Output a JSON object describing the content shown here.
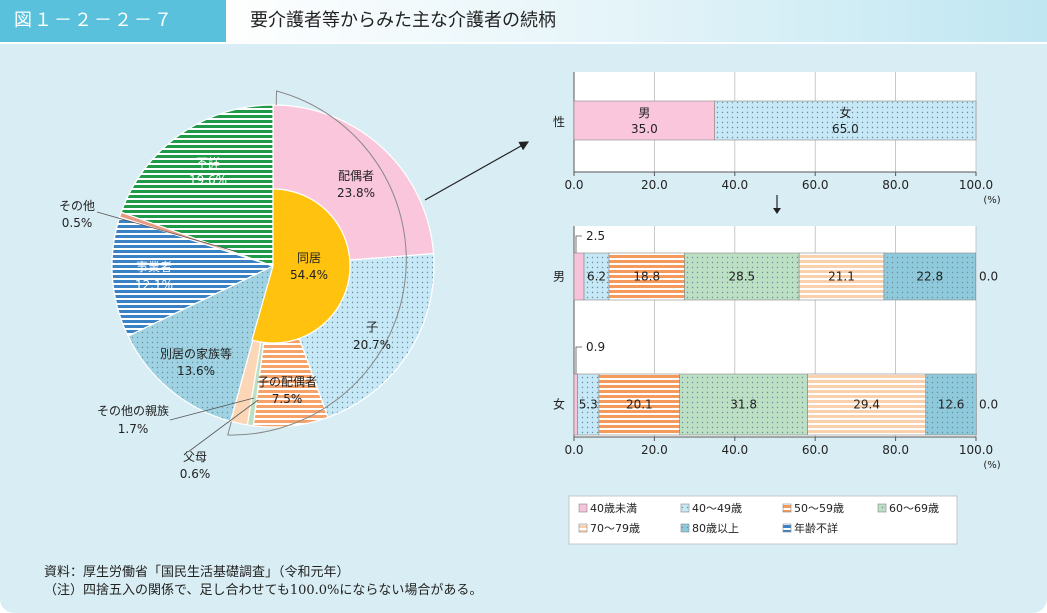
{
  "header": {
    "figure_number": "図１－２－２－７",
    "title": "要介護者等からみた主な介護者の続柄"
  },
  "chart_data": [
    {
      "type": "pie",
      "inner": {
        "label": "同居",
        "value": 54.4,
        "value_text": "54.4%",
        "color": "#ffc20e"
      },
      "slices": [
        {
          "label": "配偶者",
          "value": 23.8,
          "value_text": "23.8%",
          "color": "#f9c6dc",
          "pattern": "solid"
        },
        {
          "label": "子",
          "value": 20.7,
          "value_text": "20.7%",
          "color": "#c7e8f6",
          "pattern": "dots"
        },
        {
          "label": "子の配偶者",
          "value": 7.5,
          "value_text": "7.5%",
          "color": "#f5a36b",
          "pattern": "hstripes"
        },
        {
          "label": "父母",
          "value": 0.6,
          "value_text": "0.6%",
          "color": "#bde0c4",
          "pattern": "solid"
        },
        {
          "label": "その他の親族",
          "value": 1.7,
          "value_text": "1.7%",
          "color": "#fbd7b8",
          "pattern": "solid"
        },
        {
          "label": "別居の家族等",
          "value": 13.6,
          "value_text": "13.6%",
          "color": "#9fd3e4",
          "pattern": "dots"
        },
        {
          "label": "事業者",
          "value": 12.1,
          "value_text": "12.1%",
          "color": "#3b82c4",
          "pattern": "hstripes"
        },
        {
          "label": "その他",
          "value": 0.5,
          "value_text": "0.5%",
          "color": "#e89a82",
          "pattern": "solid"
        },
        {
          "label": "不詳",
          "value": 19.6,
          "value_text": "19.6%",
          "color": "#1f9a49",
          "pattern": "hstripes"
        }
      ]
    },
    {
      "type": "bar",
      "orientation": "horizontal",
      "stacked": true,
      "categories": [
        "性"
      ],
      "series": [
        {
          "name": "男",
          "values": [
            35.0
          ],
          "label": "35.0",
          "color": "#f9c6dc",
          "pattern": "solid"
        },
        {
          "name": "女",
          "values": [
            65.0
          ],
          "label": "65.0",
          "color": "#c7e8f6",
          "pattern": "dots"
        }
      ],
      "xlim": [
        0,
        100
      ],
      "ticks": [
        "0.0",
        "20.0",
        "40.0",
        "60.0",
        "80.0",
        "100.0"
      ],
      "unit": "(%)"
    },
    {
      "type": "bar",
      "orientation": "horizontal",
      "stacked": true,
      "categories": [
        "男",
        "女"
      ],
      "series": [
        {
          "name": "40歳未満",
          "values": [
            2.5,
            0.9
          ],
          "labels": [
            "2.5",
            "0.9"
          ],
          "color": "#f6c3da",
          "pattern": "solid"
        },
        {
          "name": "40～49歳",
          "values": [
            6.2,
            5.3
          ],
          "labels": [
            "6.2",
            "5.3"
          ],
          "color": "#c7e8f6",
          "pattern": "dots"
        },
        {
          "name": "50～59歳",
          "values": [
            18.8,
            20.1
          ],
          "labels": [
            "18.8",
            "20.1"
          ],
          "color": "#f39a5c",
          "pattern": "hstripes"
        },
        {
          "name": "60～69歳",
          "values": [
            28.5,
            31.8
          ],
          "labels": [
            "28.5",
            "31.8"
          ],
          "color": "#bde0c4",
          "pattern": "dots"
        },
        {
          "name": "70～79歳",
          "values": [
            21.1,
            29.4
          ],
          "labels": [
            "21.1",
            "29.4"
          ],
          "color": "#fbd0ad",
          "pattern": "hstripes"
        },
        {
          "name": "80歳以上",
          "values": [
            22.8,
            12.6
          ],
          "labels": [
            "22.8",
            "12.6"
          ],
          "color": "#8fcadc",
          "pattern": "dots"
        },
        {
          "name": "年齢不詳",
          "values": [
            0.0,
            0.0
          ],
          "labels": [
            "0.0",
            "0.0"
          ],
          "color": "#3b82c4",
          "pattern": "hstripes"
        }
      ],
      "xlim": [
        0,
        100
      ],
      "ticks": [
        "0.0",
        "20.0",
        "40.0",
        "60.0",
        "80.0",
        "100.0"
      ],
      "unit": "(%)"
    }
  ],
  "notes": {
    "source": "資料：厚生労働省「国民生活基礎調査」（令和元年）",
    "note": "（注）四捨五入の関係で、足し合わせても100.0%にならない場合がある。"
  }
}
